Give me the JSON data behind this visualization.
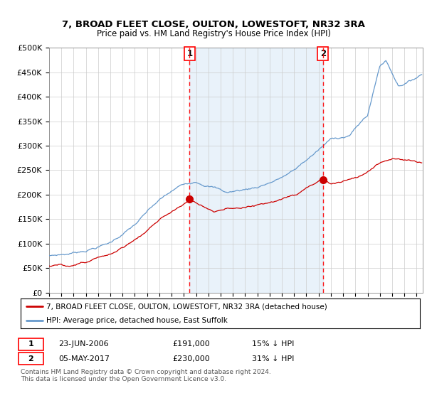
{
  "title": "7, BROAD FLEET CLOSE, OULTON, LOWESTOFT, NR32 3RA",
  "subtitle": "Price paid vs. HM Land Registry's House Price Index (HPI)",
  "ylim": [
    0,
    500000
  ],
  "yticks": [
    0,
    50000,
    100000,
    150000,
    200000,
    250000,
    300000,
    350000,
    400000,
    450000,
    500000
  ],
  "ytick_labels": [
    "£0",
    "£50K",
    "£100K",
    "£150K",
    "£200K",
    "£250K",
    "£300K",
    "£350K",
    "£400K",
    "£450K",
    "£500K"
  ],
  "xlim_start": 1995.0,
  "xlim_end": 2025.5,
  "background_color": "#dce8f8",
  "sale1_x": 2006.47,
  "sale1_y": 191000,
  "sale2_x": 2017.35,
  "sale2_y": 230000,
  "legend_label1": "7, BROAD FLEET CLOSE, OULTON, LOWESTOFT, NR32 3RA (detached house)",
  "legend_label2": "HPI: Average price, detached house, East Suffolk",
  "sale_color": "#cc0000",
  "hpi_color": "#6699cc",
  "footer1": "Contains HM Land Registry data © Crown copyright and database right 2024.",
  "footer2": "This data is licensed under the Open Government Licence v3.0.",
  "table_row1": [
    "1",
    "23-JUN-2006",
    "£191,000",
    "15% ↓ HPI"
  ],
  "table_row2": [
    "2",
    "05-MAY-2017",
    "£230,000",
    "31% ↓ HPI"
  ]
}
